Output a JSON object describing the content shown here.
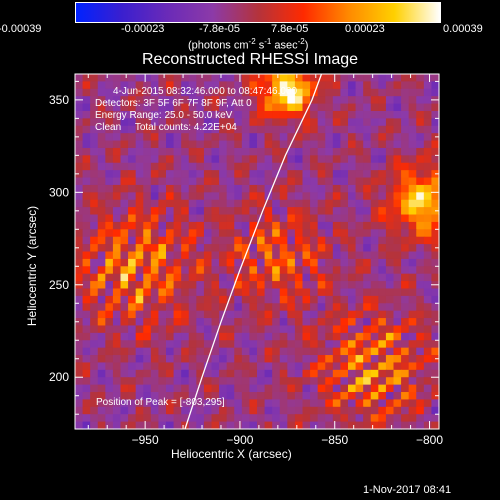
{
  "colorbar": {
    "ticks": [
      "-0.00039",
      "-0.00023",
      "-7.8e-05",
      "7.8e-05",
      "0.00023",
      "0.00039"
    ],
    "units_main": "(photons cm",
    "units_exp1": "-2",
    "units_mid": " s",
    "units_exp2": "-1",
    "units_end": " asec",
    "units_exp3": "-2",
    "units_close": ")",
    "colormap": [
      "#0022ff",
      "#3a1fcf",
      "#6a2ab8",
      "#8c3aa8",
      "#b4333c",
      "#ff2a00",
      "#ff8a00",
      "#ffd000",
      "#ffffff"
    ]
  },
  "title": "Reconstructed RHESSI Image",
  "annotations": {
    "line1": "4-Jun-2015 08:32:46.000 to 08:47:46.000",
    "line2": "Detectors: 3F 5F 6F 7F 8F 9F, Att 0",
    "line3": "Energy Range: 25.0 - 50.0 keV",
    "line4": "Clean     Total counts: 4.22E+04",
    "peak": "Position of Peak = [-803,295]"
  },
  "timestamp": "1-Nov-2017 08:41",
  "chart_data": {
    "type": "heatmap",
    "title": "Reconstructed RHESSI Image",
    "xlabel": "Heliocentric X (arcsec)",
    "ylabel": "Heliocentric Y (arcsec)",
    "xlim": [
      -987,
      -795
    ],
    "ylim": [
      172,
      364
    ],
    "x_ticks": [
      -950,
      -900,
      -850,
      -800
    ],
    "y_ticks": [
      200,
      250,
      300,
      350
    ],
    "value_range": [
      -0.00039,
      0.00039
    ],
    "peak_position": [
      -803,
      295
    ],
    "limb": [
      [
        -929,
        172
      ],
      [
        -920,
        200
      ],
      [
        -910,
        230
      ],
      [
        -900,
        258
      ],
      [
        -888,
        290
      ],
      [
        -876,
        320
      ],
      [
        -862,
        350
      ],
      [
        -857,
        364
      ]
    ]
  }
}
